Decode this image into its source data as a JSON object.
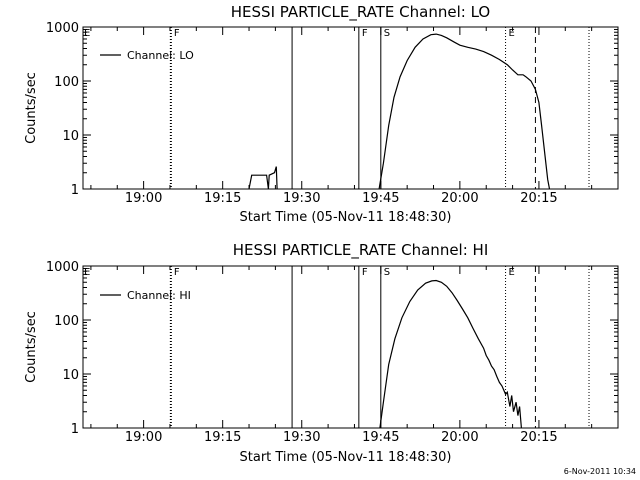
{
  "footer": {
    "timestamp": "6-Nov-2011 10:34"
  },
  "chart_data": [
    {
      "type": "line",
      "title": "HESSI PARTICLE_RATE Channel: LO",
      "xlabel": "Start Time (05-Nov-11 18:48:30)",
      "ylabel": "Counts/sec",
      "x_unit": "minutes",
      "xlim": [
        "18:48:30",
        "20:30:00"
      ],
      "ylim": [
        1,
        1000
      ],
      "yscale": "log",
      "x_ticks": [
        "19:00",
        "19:15",
        "19:30",
        "19:45",
        "20:00",
        "20:15"
      ],
      "y_ticks": [
        "1",
        "10",
        "100",
        "1000"
      ],
      "legend": {
        "position": "top-left",
        "entries": [
          "Channel: LO"
        ]
      },
      "series": [
        {
          "name": "Channel: LO",
          "segments": [
            [
              [
                "19:20:00",
                1
              ],
              [
                "19:20:30",
                1.8
              ],
              [
                "19:23:20",
                1.8
              ],
              [
                "19:23:40",
                1
              ],
              [
                "19:23:50",
                1.8
              ],
              [
                "19:24:50",
                2.0
              ],
              [
                "19:25:10",
                2.6
              ],
              [
                "19:25:20",
                1.0
              ]
            ],
            [
              [
                "19:44:40",
                1
              ],
              [
                "19:45:30",
                3
              ],
              [
                "19:46:30",
                15
              ],
              [
                "19:47:30",
                50
              ],
              [
                "19:48:40",
                120
              ],
              [
                "19:50:00",
                240
              ],
              [
                "19:51:30",
                420
              ],
              [
                "19:53:00",
                600
              ],
              [
                "19:54:30",
                720
              ],
              [
                "19:55:30",
                740
              ],
              [
                "19:56:30",
                700
              ],
              [
                "19:57:30",
                630
              ],
              [
                "19:59:00",
                520
              ],
              [
                "20:00:00",
                460
              ],
              [
                "20:01:30",
                420
              ],
              [
                "20:03:00",
                390
              ],
              [
                "20:04:30",
                350
              ],
              [
                "20:06:00",
                300
              ],
              [
                "20:07:30",
                250
              ],
              [
                "20:09:00",
                200
              ],
              [
                "20:10:00",
                160
              ],
              [
                "20:11:00",
                130
              ],
              [
                "20:12:00",
                130
              ],
              [
                "20:12:30",
                120
              ],
              [
                "20:13:30",
                100
              ],
              [
                "20:14:20",
                70
              ],
              [
                "20:15:00",
                40
              ],
              [
                "20:15:30",
                15
              ],
              [
                "20:16:10",
                4
              ],
              [
                "20:16:40",
                1.5
              ],
              [
                "20:17:00",
                1
              ]
            ]
          ]
        }
      ],
      "markers": [
        {
          "time": "19:05:10",
          "label": "F",
          "style": "dotted"
        },
        {
          "time": "19:28:10",
          "label": "",
          "style": "solid"
        },
        {
          "time": "19:40:50",
          "label": "F",
          "style": "solid"
        },
        {
          "time": "19:45:00",
          "label": "S",
          "style": "solid"
        },
        {
          "time": "20:08:40",
          "label": "E",
          "style": "dotted"
        },
        {
          "time": "20:14:20",
          "label": "",
          "style": "dashed"
        },
        {
          "time": "20:24:30",
          "label": "",
          "style": "dotted"
        }
      ],
      "annotations": [
        {
          "label": "E",
          "time": "18:48:30"
        }
      ]
    },
    {
      "type": "line",
      "title": "HESSI PARTICLE_RATE Channel: HI",
      "xlabel": "Start Time (05-Nov-11 18:48:30)",
      "ylabel": "Counts/sec",
      "x_unit": "minutes",
      "xlim": [
        "18:48:30",
        "20:30:00"
      ],
      "ylim": [
        1,
        1000
      ],
      "yscale": "log",
      "x_ticks": [
        "19:00",
        "19:15",
        "19:30",
        "19:45",
        "20:00",
        "20:15"
      ],
      "y_ticks": [
        "1",
        "10",
        "100",
        "1000"
      ],
      "legend": {
        "position": "top-left",
        "entries": [
          "Channel: HI"
        ]
      },
      "series": [
        {
          "name": "Channel: HI",
          "segments": [
            [
              [
                "19:44:50",
                1
              ],
              [
                "19:45:30",
                3
              ],
              [
                "19:46:30",
                15
              ],
              [
                "19:47:40",
                45
              ],
              [
                "19:49:00",
                110
              ],
              [
                "19:50:30",
                220
              ],
              [
                "19:52:00",
                360
              ],
              [
                "19:53:30",
                480
              ],
              [
                "19:54:40",
                530
              ],
              [
                "19:55:30",
                540
              ],
              [
                "19:56:30",
                500
              ],
              [
                "19:57:30",
                420
              ],
              [
                "19:58:30",
                320
              ],
              [
                "19:59:30",
                230
              ],
              [
                "20:00:30",
                160
              ],
              [
                "20:01:30",
                110
              ],
              [
                "20:02:30",
                70
              ],
              [
                "20:03:30",
                45
              ],
              [
                "20:04:30",
                30
              ],
              [
                "20:05:00",
                22
              ],
              [
                "20:05:30",
                18
              ],
              [
                "20:06:00",
                14
              ],
              [
                "20:06:30",
                12
              ],
              [
                "20:07:00",
                9
              ],
              [
                "20:07:30",
                7
              ],
              [
                "20:08:00",
                6
              ],
              [
                "20:08:40",
                4.2
              ],
              [
                "20:09:00",
                4.6
              ],
              [
                "20:09:30",
                2.5
              ],
              [
                "20:09:50",
                4
              ],
              [
                "20:10:10",
                2
              ],
              [
                "20:10:40",
                3
              ],
              [
                "20:11:00",
                1.7
              ],
              [
                "20:11:20",
                2.5
              ],
              [
                "20:11:40",
                1
              ]
            ]
          ]
        }
      ],
      "markers": [
        {
          "time": "19:05:10",
          "label": "F",
          "style": "dotted"
        },
        {
          "time": "19:28:10",
          "label": "",
          "style": "solid"
        },
        {
          "time": "19:40:50",
          "label": "F",
          "style": "solid"
        },
        {
          "time": "19:45:00",
          "label": "S",
          "style": "solid"
        },
        {
          "time": "20:08:40",
          "label": "E",
          "style": "dotted"
        },
        {
          "time": "20:14:20",
          "label": "",
          "style": "dashed"
        },
        {
          "time": "20:24:30",
          "label": "",
          "style": "dotted"
        }
      ],
      "annotations": [
        {
          "label": "E",
          "time": "18:48:30"
        }
      ]
    }
  ]
}
